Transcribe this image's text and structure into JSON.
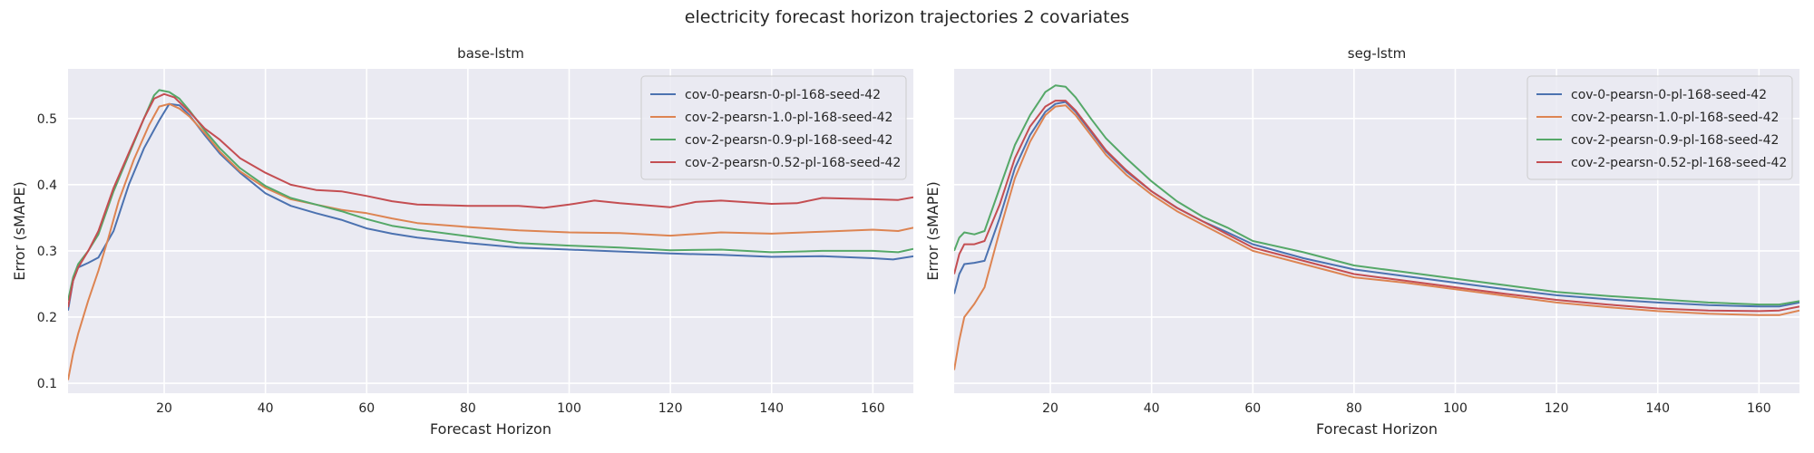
{
  "figure": {
    "suptitle": "electricity forecast horizon trajectories 2 covariates"
  },
  "colors": {
    "background": "#eaeaf2",
    "grid": "#ffffff",
    "series": [
      "#4c72b0",
      "#dd8452",
      "#55a868",
      "#c44e52"
    ]
  },
  "chart_data": [
    {
      "type": "line",
      "title": "base-lstm",
      "xlabel": "Forecast Horizon",
      "ylabel": "Error (sMAPE)",
      "xlim": [
        1,
        168
      ],
      "ylim": [
        0.085,
        0.575
      ],
      "xticks": [
        20,
        40,
        60,
        80,
        100,
        120,
        140,
        160
      ],
      "yticks": [
        0.1,
        0.2,
        0.3,
        0.4,
        0.5
      ],
      "legend_position": "top-right",
      "series": [
        {
          "name": "cov-0-pearsn-0-pl-168-seed-42",
          "points": [
            [
              1,
              0.21
            ],
            [
              2,
              0.255
            ],
            [
              3,
              0.275
            ],
            [
              5,
              0.282
            ],
            [
              7,
              0.29
            ],
            [
              10,
              0.33
            ],
            [
              13,
              0.4
            ],
            [
              16,
              0.455
            ],
            [
              19,
              0.497
            ],
            [
              21,
              0.522
            ],
            [
              23,
              0.52
            ],
            [
              25,
              0.505
            ],
            [
              28,
              0.475
            ],
            [
              31,
              0.447
            ],
            [
              35,
              0.418
            ],
            [
              40,
              0.387
            ],
            [
              45,
              0.368
            ],
            [
              50,
              0.357
            ],
            [
              55,
              0.347
            ],
            [
              60,
              0.334
            ],
            [
              65,
              0.326
            ],
            [
              70,
              0.32
            ],
            [
              80,
              0.312
            ],
            [
              90,
              0.305
            ],
            [
              100,
              0.302
            ],
            [
              110,
              0.299
            ],
            [
              120,
              0.296
            ],
            [
              130,
              0.294
            ],
            [
              140,
              0.291
            ],
            [
              150,
              0.292
            ],
            [
              160,
              0.289
            ],
            [
              164,
              0.287
            ],
            [
              168,
              0.292
            ]
          ]
        },
        {
          "name": "cov-2-pearsn-1.0-pl-168-seed-42",
          "points": [
            [
              1,
              0.105
            ],
            [
              2,
              0.145
            ],
            [
              3,
              0.175
            ],
            [
              5,
              0.225
            ],
            [
              7,
              0.27
            ],
            [
              9,
              0.32
            ],
            [
              11,
              0.375
            ],
            [
              14,
              0.438
            ],
            [
              17,
              0.49
            ],
            [
              19,
              0.518
            ],
            [
              21,
              0.522
            ],
            [
              23,
              0.515
            ],
            [
              25,
              0.503
            ],
            [
              28,
              0.478
            ],
            [
              31,
              0.45
            ],
            [
              35,
              0.42
            ],
            [
              40,
              0.395
            ],
            [
              45,
              0.378
            ],
            [
              50,
              0.37
            ],
            [
              55,
              0.362
            ],
            [
              60,
              0.357
            ],
            [
              65,
              0.349
            ],
            [
              70,
              0.342
            ],
            [
              80,
              0.336
            ],
            [
              90,
              0.331
            ],
            [
              100,
              0.328
            ],
            [
              110,
              0.327
            ],
            [
              120,
              0.323
            ],
            [
              130,
              0.328
            ],
            [
              140,
              0.326
            ],
            [
              150,
              0.329
            ],
            [
              160,
              0.332
            ],
            [
              165,
              0.33
            ],
            [
              168,
              0.335
            ]
          ]
        },
        {
          "name": "cov-2-pearsn-0.9-pl-168-seed-42",
          "points": [
            [
              1,
              0.225
            ],
            [
              2,
              0.26
            ],
            [
              3,
              0.28
            ],
            [
              5,
              0.3
            ],
            [
              7,
              0.325
            ],
            [
              10,
              0.39
            ],
            [
              13,
              0.445
            ],
            [
              16,
              0.5
            ],
            [
              18,
              0.535
            ],
            [
              19,
              0.543
            ],
            [
              21,
              0.54
            ],
            [
              23,
              0.53
            ],
            [
              25,
              0.512
            ],
            [
              28,
              0.482
            ],
            [
              31,
              0.455
            ],
            [
              35,
              0.425
            ],
            [
              40,
              0.398
            ],
            [
              45,
              0.38
            ],
            [
              50,
              0.37
            ],
            [
              55,
              0.36
            ],
            [
              60,
              0.348
            ],
            [
              65,
              0.338
            ],
            [
              70,
              0.332
            ],
            [
              80,
              0.322
            ],
            [
              90,
              0.312
            ],
            [
              100,
              0.308
            ],
            [
              110,
              0.305
            ],
            [
              120,
              0.301
            ],
            [
              130,
              0.302
            ],
            [
              140,
              0.298
            ],
            [
              150,
              0.3
            ],
            [
              160,
              0.3
            ],
            [
              165,
              0.298
            ],
            [
              168,
              0.303
            ]
          ]
        },
        {
          "name": "cov-2-pearsn-0.52-pl-168-seed-42",
          "points": [
            [
              1,
              0.215
            ],
            [
              2,
              0.255
            ],
            [
              3,
              0.275
            ],
            [
              5,
              0.3
            ],
            [
              7,
              0.33
            ],
            [
              10,
              0.395
            ],
            [
              13,
              0.448
            ],
            [
              16,
              0.5
            ],
            [
              18,
              0.53
            ],
            [
              20,
              0.537
            ],
            [
              22,
              0.532
            ],
            [
              25,
              0.51
            ],
            [
              28,
              0.485
            ],
            [
              31,
              0.468
            ],
            [
              35,
              0.44
            ],
            [
              40,
              0.418
            ],
            [
              45,
              0.4
            ],
            [
              50,
              0.392
            ],
            [
              55,
              0.39
            ],
            [
              60,
              0.383
            ],
            [
              65,
              0.375
            ],
            [
              70,
              0.37
            ],
            [
              80,
              0.368
            ],
            [
              90,
              0.368
            ],
            [
              95,
              0.365
            ],
            [
              100,
              0.37
            ],
            [
              105,
              0.376
            ],
            [
              110,
              0.372
            ],
            [
              120,
              0.366
            ],
            [
              125,
              0.374
            ],
            [
              130,
              0.376
            ],
            [
              140,
              0.371
            ],
            [
              145,
              0.372
            ],
            [
              150,
              0.38
            ],
            [
              160,
              0.378
            ],
            [
              165,
              0.377
            ],
            [
              168,
              0.381
            ]
          ]
        }
      ]
    },
    {
      "type": "line",
      "title": "seg-lstm",
      "xlabel": "Forecast Horizon",
      "ylabel": "Error (sMAPE)",
      "xlim": [
        1,
        168
      ],
      "ylim": [
        0.085,
        0.575
      ],
      "xticks": [
        20,
        40,
        60,
        80,
        100,
        120,
        140,
        160
      ],
      "yticks": [],
      "legend_position": "top-right",
      "series": [
        {
          "name": "cov-0-pearsn-0-pl-168-seed-42",
          "points": [
            [
              1,
              0.235
            ],
            [
              2,
              0.265
            ],
            [
              3,
              0.28
            ],
            [
              5,
              0.282
            ],
            [
              7,
              0.285
            ],
            [
              10,
              0.35
            ],
            [
              13,
              0.425
            ],
            [
              16,
              0.475
            ],
            [
              19,
              0.51
            ],
            [
              21,
              0.522
            ],
            [
              23,
              0.525
            ],
            [
              25,
              0.51
            ],
            [
              28,
              0.48
            ],
            [
              31,
              0.45
            ],
            [
              35,
              0.42
            ],
            [
              40,
              0.39
            ],
            [
              45,
              0.365
            ],
            [
              50,
              0.345
            ],
            [
              55,
              0.328
            ],
            [
              60,
              0.31
            ],
            [
              70,
              0.289
            ],
            [
              80,
              0.272
            ],
            [
              90,
              0.262
            ],
            [
              100,
              0.252
            ],
            [
              110,
              0.242
            ],
            [
              120,
              0.233
            ],
            [
              130,
              0.227
            ],
            [
              140,
              0.222
            ],
            [
              150,
              0.218
            ],
            [
              160,
              0.216
            ],
            [
              164,
              0.216
            ],
            [
              168,
              0.222
            ]
          ]
        },
        {
          "name": "cov-2-pearsn-1.0-pl-168-seed-42",
          "points": [
            [
              1,
              0.12
            ],
            [
              2,
              0.165
            ],
            [
              3,
              0.2
            ],
            [
              5,
              0.22
            ],
            [
              7,
              0.245
            ],
            [
              10,
              0.33
            ],
            [
              13,
              0.41
            ],
            [
              16,
              0.465
            ],
            [
              19,
              0.505
            ],
            [
              21,
              0.518
            ],
            [
              23,
              0.52
            ],
            [
              25,
              0.505
            ],
            [
              28,
              0.475
            ],
            [
              31,
              0.445
            ],
            [
              35,
              0.415
            ],
            [
              40,
              0.385
            ],
            [
              45,
              0.36
            ],
            [
              50,
              0.34
            ],
            [
              55,
              0.32
            ],
            [
              60,
              0.3
            ],
            [
              70,
              0.28
            ],
            [
              80,
              0.26
            ],
            [
              90,
              0.252
            ],
            [
              100,
              0.242
            ],
            [
              110,
              0.232
            ],
            [
              120,
              0.222
            ],
            [
              130,
              0.215
            ],
            [
              140,
              0.209
            ],
            [
              150,
              0.205
            ],
            [
              160,
              0.203
            ],
            [
              164,
              0.203
            ],
            [
              168,
              0.21
            ]
          ]
        },
        {
          "name": "cov-2-pearsn-0.9-pl-168-seed-42",
          "points": [
            [
              1,
              0.3
            ],
            [
              2,
              0.32
            ],
            [
              3,
              0.328
            ],
            [
              5,
              0.325
            ],
            [
              7,
              0.33
            ],
            [
              10,
              0.395
            ],
            [
              13,
              0.46
            ],
            [
              16,
              0.505
            ],
            [
              19,
              0.54
            ],
            [
              21,
              0.55
            ],
            [
              23,
              0.548
            ],
            [
              25,
              0.532
            ],
            [
              28,
              0.5
            ],
            [
              31,
              0.47
            ],
            [
              35,
              0.44
            ],
            [
              40,
              0.405
            ],
            [
              45,
              0.375
            ],
            [
              50,
              0.352
            ],
            [
              55,
              0.335
            ],
            [
              60,
              0.315
            ],
            [
              70,
              0.298
            ],
            [
              80,
              0.278
            ],
            [
              90,
              0.268
            ],
            [
              100,
              0.258
            ],
            [
              110,
              0.248
            ],
            [
              120,
              0.238
            ],
            [
              130,
              0.232
            ],
            [
              140,
              0.227
            ],
            [
              150,
              0.222
            ],
            [
              160,
              0.219
            ],
            [
              164,
              0.219
            ],
            [
              168,
              0.224
            ]
          ]
        },
        {
          "name": "cov-2-pearsn-0.52-pl-168-seed-42",
          "points": [
            [
              1,
              0.265
            ],
            [
              2,
              0.295
            ],
            [
              3,
              0.31
            ],
            [
              5,
              0.31
            ],
            [
              7,
              0.315
            ],
            [
              10,
              0.37
            ],
            [
              13,
              0.44
            ],
            [
              16,
              0.488
            ],
            [
              19,
              0.518
            ],
            [
              21,
              0.527
            ],
            [
              23,
              0.527
            ],
            [
              25,
              0.512
            ],
            [
              28,
              0.482
            ],
            [
              31,
              0.452
            ],
            [
              35,
              0.422
            ],
            [
              40,
              0.39
            ],
            [
              45,
              0.365
            ],
            [
              50,
              0.345
            ],
            [
              55,
              0.325
            ],
            [
              60,
              0.305
            ],
            [
              70,
              0.285
            ],
            [
              80,
              0.265
            ],
            [
              90,
              0.255
            ],
            [
              100,
              0.245
            ],
            [
              110,
              0.235
            ],
            [
              120,
              0.226
            ],
            [
              130,
              0.219
            ],
            [
              140,
              0.213
            ],
            [
              150,
              0.21
            ],
            [
              160,
              0.209
            ],
            [
              164,
              0.21
            ],
            [
              168,
              0.216
            ]
          ]
        }
      ]
    }
  ]
}
